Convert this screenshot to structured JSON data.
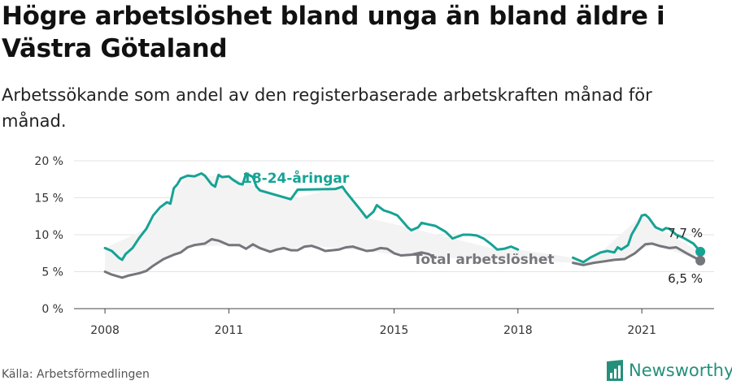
{
  "header": {
    "title": "Högre arbetslöshet bland unga än bland äldre i Västra Götaland",
    "subtitle": "Arbetssökande som andel av den registerbaserade arbetskraften månad för månad."
  },
  "footer": {
    "source": "Källa: Arbetsförmedlingen",
    "brand": "Newsworthy"
  },
  "chart_data": {
    "type": "line",
    "x_ticks": [
      "2008",
      "2011",
      "2015",
      "2018",
      "2021"
    ],
    "y_ticks": [
      "0 %",
      "5 %",
      "10 %",
      "15 %",
      "20 %"
    ],
    "ylim": [
      0,
      20
    ],
    "grid": true,
    "colors": {
      "youth": "#16a394",
      "total": "#76757b",
      "band": "#f3f3f3"
    },
    "series": [
      {
        "name": "18-24-åringar",
        "key": "youth",
        "points": [
          [
            "2008-01",
            8.2
          ],
          [
            "2008-03",
            7.8
          ],
          [
            "2008-05",
            6.9
          ],
          [
            "2008-06",
            6.6
          ],
          [
            "2008-07",
            7.4
          ],
          [
            "2008-09",
            8.2
          ],
          [
            "2008-11",
            9.6
          ],
          [
            "2009-01",
            10.8
          ],
          [
            "2009-03",
            12.6
          ],
          [
            "2009-05",
            13.7
          ],
          [
            "2009-07",
            14.4
          ],
          [
            "2009-08",
            14.2
          ],
          [
            "2009-09",
            16.3
          ],
          [
            "2009-10",
            16.8
          ],
          [
            "2009-11",
            17.6
          ],
          [
            "2010-01",
            18.0
          ],
          [
            "2010-03",
            17.9
          ],
          [
            "2010-05",
            18.3
          ],
          [
            "2010-06",
            18.0
          ],
          [
            "2010-08",
            16.8
          ],
          [
            "2010-09",
            16.5
          ],
          [
            "2010-10",
            18.1
          ],
          [
            "2010-11",
            17.8
          ],
          [
            "2011-01",
            17.9
          ],
          [
            "2011-02",
            17.5
          ],
          [
            "2011-04",
            16.9
          ],
          [
            "2011-05",
            16.8
          ],
          [
            "2011-06",
            18.3
          ],
          [
            "2011-08",
            17.8
          ],
          [
            "2011-09",
            16.5
          ],
          [
            "2011-10",
            16.0
          ],
          [
            "2012-07",
            14.8
          ],
          [
            "2012-09",
            16.1
          ],
          [
            "2013-08",
            16.2
          ],
          [
            "2013-10",
            16.5
          ],
          [
            "2013-11",
            15.8
          ],
          [
            "2014-03",
            13.5
          ],
          [
            "2014-05",
            12.3
          ],
          [
            "2014-07",
            13.1
          ],
          [
            "2014-08",
            14.0
          ],
          [
            "2014-10",
            13.3
          ],
          [
            "2014-12",
            13.0
          ],
          [
            "2015-02",
            12.6
          ],
          [
            "2015-05",
            11.0
          ],
          [
            "2015-06",
            10.6
          ],
          [
            "2015-08",
            11.0
          ],
          [
            "2015-09",
            11.6
          ],
          [
            "2015-11",
            11.4
          ],
          [
            "2016-01",
            11.2
          ],
          [
            "2016-04",
            10.4
          ],
          [
            "2016-06",
            9.5
          ],
          [
            "2016-09",
            10.0
          ],
          [
            "2016-11",
            10.0
          ],
          [
            "2017-01",
            9.9
          ],
          [
            "2017-03",
            9.5
          ],
          [
            "2017-05",
            8.8
          ],
          [
            "2017-07",
            8.0
          ],
          [
            "2017-09",
            8.1
          ],
          [
            "2017-11",
            8.4
          ],
          [
            "2018-01",
            8.0
          ]
        ],
        "segment_2": [
          [
            "2019-05",
            6.9
          ],
          [
            "2019-08",
            6.3
          ],
          [
            "2019-10",
            6.9
          ],
          [
            "2020-01",
            7.6
          ],
          [
            "2020-03",
            7.8
          ],
          [
            "2020-05",
            7.6
          ],
          [
            "2020-06",
            8.3
          ],
          [
            "2020-07",
            8.0
          ],
          [
            "2020-09",
            8.6
          ],
          [
            "2020-10",
            10.0
          ],
          [
            "2020-12",
            11.6
          ],
          [
            "2021-01",
            12.6
          ],
          [
            "2021-02",
            12.7
          ],
          [
            "2021-03",
            12.3
          ],
          [
            "2021-05",
            11.0
          ],
          [
            "2021-07",
            10.6
          ],
          [
            "2021-08",
            10.9
          ],
          [
            "2021-09",
            10.8
          ],
          [
            "2021-11",
            10.0
          ],
          [
            "2022-01",
            9.6
          ],
          [
            "2022-04",
            8.8
          ],
          [
            "2022-06",
            7.7
          ]
        ],
        "end_label": "7,7 %"
      },
      {
        "name": "Total arbetslöshet",
        "key": "total",
        "points": [
          [
            "2008-01",
            5.0
          ],
          [
            "2008-03",
            4.6
          ],
          [
            "2008-06",
            4.2
          ],
          [
            "2008-08",
            4.5
          ],
          [
            "2008-11",
            4.8
          ],
          [
            "2009-01",
            5.1
          ],
          [
            "2009-03",
            5.8
          ],
          [
            "2009-06",
            6.7
          ],
          [
            "2009-09",
            7.3
          ],
          [
            "2009-11",
            7.6
          ],
          [
            "2010-01",
            8.3
          ],
          [
            "2010-03",
            8.6
          ],
          [
            "2010-06",
            8.8
          ],
          [
            "2010-08",
            9.4
          ],
          [
            "2010-10",
            9.2
          ],
          [
            "2011-01",
            8.6
          ],
          [
            "2011-04",
            8.6
          ],
          [
            "2011-06",
            8.1
          ],
          [
            "2011-08",
            8.7
          ],
          [
            "2011-10",
            8.2
          ],
          [
            "2012-01",
            7.7
          ],
          [
            "2012-03",
            8.0
          ],
          [
            "2012-05",
            8.2
          ],
          [
            "2012-07",
            7.9
          ],
          [
            "2012-09",
            7.9
          ],
          [
            "2012-11",
            8.4
          ],
          [
            "2013-01",
            8.5
          ],
          [
            "2013-03",
            8.2
          ],
          [
            "2013-05",
            7.8
          ],
          [
            "2013-07",
            7.9
          ],
          [
            "2013-09",
            8.0
          ],
          [
            "2013-11",
            8.3
          ],
          [
            "2014-01",
            8.4
          ],
          [
            "2014-03",
            8.1
          ],
          [
            "2014-05",
            7.8
          ],
          [
            "2014-07",
            7.9
          ],
          [
            "2014-09",
            8.2
          ],
          [
            "2014-11",
            8.1
          ],
          [
            "2015-01",
            7.5
          ],
          [
            "2015-03",
            7.2
          ],
          [
            "2015-06",
            7.3
          ],
          [
            "2015-09",
            7.6
          ],
          [
            "2015-11",
            7.4
          ],
          [
            "2016-01",
            6.9
          ]
        ],
        "segment_2": [
          [
            "2019-05",
            6.2
          ],
          [
            "2019-08",
            5.9
          ],
          [
            "2019-11",
            6.2
          ],
          [
            "2020-02",
            6.4
          ],
          [
            "2020-05",
            6.6
          ],
          [
            "2020-08",
            6.7
          ],
          [
            "2020-11",
            7.5
          ],
          [
            "2021-02",
            8.7
          ],
          [
            "2021-04",
            8.8
          ],
          [
            "2021-06",
            8.5
          ],
          [
            "2021-09",
            8.2
          ],
          [
            "2021-11",
            8.3
          ],
          [
            "2022-02",
            7.5
          ],
          [
            "2022-04",
            7.0
          ],
          [
            "2022-06",
            6.5
          ]
        ],
        "end_label": "6,5 %"
      }
    ],
    "band": {
      "upper": [
        [
          "2008-01",
          8.2
        ],
        [
          "2009-01",
          10.8
        ],
        [
          "2009-07",
          14.4
        ],
        [
          "2010-01",
          18.0
        ],
        [
          "2011-01",
          17.9
        ],
        [
          "2012-07",
          14.8
        ],
        [
          "2013-10",
          16.5
        ],
        [
          "2014-05",
          12.3
        ],
        [
          "2015-05",
          11.0
        ],
        [
          "2016-06",
          9.5
        ],
        [
          "2017-07",
          8.0
        ],
        [
          "2018-01",
          8.0
        ],
        [
          "2019-05",
          6.9
        ],
        [
          "2019-08",
          6.3
        ],
        [
          "2020-01",
          7.6
        ],
        [
          "2021-01",
          12.6
        ],
        [
          "2021-07",
          10.6
        ],
        [
          "2022-06",
          7.7
        ]
      ],
      "lower": [
        [
          "2008-01",
          5.0
        ],
        [
          "2009-01",
          5.1
        ],
        [
          "2010-01",
          8.3
        ],
        [
          "2011-01",
          8.6
        ],
        [
          "2012-01",
          7.7
        ],
        [
          "2013-01",
          8.5
        ],
        [
          "2014-05",
          7.8
        ],
        [
          "2015-03",
          7.2
        ],
        [
          "2016-01",
          6.9
        ],
        [
          "2018-01",
          6.6
        ],
        [
          "2019-05",
          6.2
        ],
        [
          "2019-08",
          5.9
        ],
        [
          "2020-08",
          6.7
        ],
        [
          "2021-04",
          8.8
        ],
        [
          "2022-06",
          6.5
        ]
      ]
    }
  }
}
